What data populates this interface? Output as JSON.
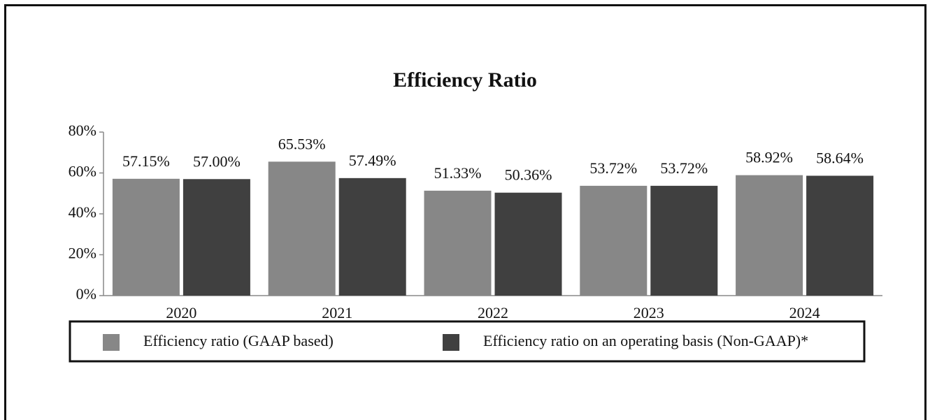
{
  "chart_data": {
    "type": "bar",
    "title": "Efficiency Ratio",
    "categories": [
      "2020",
      "2021",
      "2022",
      "2023",
      "2024"
    ],
    "series": [
      {
        "name": "Efficiency ratio (GAAP based)",
        "color": "#878787",
        "values": [
          57.15,
          65.53,
          51.33,
          53.72,
          58.92
        ],
        "value_labels": [
          "57.15%",
          "65.53%",
          "51.33%",
          "53.72%",
          "58.92%"
        ]
      },
      {
        "name": "Efficiency ratio on an operating basis (Non-GAAP)*",
        "color": "#404040",
        "values": [
          57.0,
          57.49,
          50.36,
          53.72,
          58.64
        ],
        "value_labels": [
          "57.00%",
          "57.49%",
          "50.36%",
          "53.72%",
          "58.64%"
        ]
      }
    ],
    "ylim": [
      0,
      80
    ],
    "yticks": [
      {
        "value": 0,
        "label": "0%"
      },
      {
        "value": 20,
        "label": "20%"
      },
      {
        "value": 40,
        "label": "40%"
      },
      {
        "value": 60,
        "label": "60%"
      },
      {
        "value": 80,
        "label": "80%"
      }
    ],
    "grid": false,
    "legend": "bottom"
  }
}
